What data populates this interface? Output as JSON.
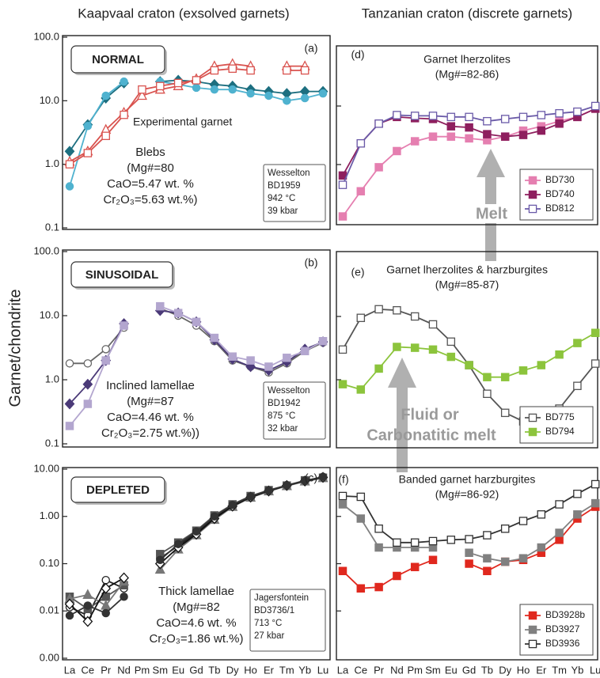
{
  "column_titles": [
    "Kaapvaal craton (exsolved garnets)",
    "Tanzanian craton (discrete garnets)"
  ],
  "y_label": "Garnet/chondrite",
  "arrows": {
    "melt": "Melt",
    "fluid": [
      "Fluid or",
      "Carbonatitic melt"
    ]
  },
  "chart_data": [
    {
      "type": "line",
      "log": true,
      "tick_labels": true,
      "panel_tag": "(a)",
      "label": "NORMAL",
      "curve_label": "Experimental garnet",
      "note": [
        "Blebs",
        "(Mg#=80",
        "CaO=5.47 wt. %",
        "Cr₂O₃=5.63 wt.%)"
      ],
      "sample": [
        "Wesselton",
        "BD1959",
        "942 °C",
        "39 kbar"
      ],
      "ylim": [
        0.1,
        100
      ],
      "yticks": [
        0.1,
        {
          "value": 1,
          "label": "1.0"
        },
        {
          "value": 10,
          "label": "10.0"
        },
        {
          "value": 100,
          "label": "100.0"
        }
      ],
      "series": [
        {
          "color": "#1d6f80",
          "marker": "diamond",
          "open": false,
          "values": [
            1.6,
            4.2,
            11,
            19,
            null,
            20,
            21,
            20,
            18,
            17,
            15,
            14,
            13,
            14,
            14
          ]
        },
        {
          "color": "#4fb2cf",
          "marker": "circle",
          "open": false,
          "values": [
            0.45,
            4,
            12,
            20,
            null,
            20,
            18,
            16,
            15,
            15,
            13,
            12,
            10,
            11,
            13
          ]
        },
        {
          "color": "#d9534f",
          "marker": "triangle",
          "open": true,
          "values": [
            1.1,
            1.6,
            3.5,
            6.5,
            12,
            15,
            17,
            22,
            35,
            38,
            35,
            null,
            35,
            35,
            null
          ]
        },
        {
          "color": "#d9534f",
          "marker": "square",
          "open": true,
          "values": [
            1.0,
            1.5,
            2.8,
            6,
            15,
            17,
            19,
            21,
            30,
            32,
            30,
            null,
            30,
            30,
            null
          ]
        }
      ]
    },
    {
      "type": "line",
      "log": true,
      "tick_labels": true,
      "panel_tag": "(b)",
      "label": "SINUSOIDAL",
      "note": [
        "Inclined lamellae",
        "(Mg#=87",
        "CaO=4.46 wt. %",
        "Cr₂O₃=2.75 wt.%))"
      ],
      "sample": [
        "Wesselton",
        "BD1942",
        "875 °C",
        "32 kbar"
      ],
      "ylim": [
        0.1,
        100
      ],
      "yticks": [
        0.1,
        {
          "value": 1,
          "label": "1.0"
        },
        {
          "value": 10,
          "label": "10.0"
        },
        {
          "value": 100,
          "label": "100.0"
        }
      ],
      "series": [
        {
          "color": "#666666",
          "marker": "circle",
          "open": true,
          "values": [
            1.8,
            1.8,
            3,
            6.5,
            null,
            13,
            10,
            7,
            4,
            2,
            1.6,
            1.3,
            1.8,
            2.8,
            3.8
          ]
        },
        {
          "color": "#4b3a78",
          "marker": "diamond",
          "open": false,
          "values": [
            0.42,
            0.85,
            2,
            7.5,
            null,
            12,
            11,
            8,
            4.2,
            2.1,
            1.6,
            1.4,
            1.9,
            3,
            3.9
          ]
        },
        {
          "color": "#b3a6cf",
          "marker": "square",
          "open": false,
          "values": [
            0.19,
            0.42,
            2,
            7,
            null,
            14,
            11,
            8,
            4.5,
            2.3,
            2,
            1.6,
            2.2,
            2.8,
            4
          ]
        }
      ]
    },
    {
      "type": "line",
      "log": true,
      "tick_labels": true,
      "panel_tag": "(c)",
      "label": "DEPLETED",
      "note": [
        "Thick lamellae",
        "(Mg#=82",
        "CaO=4.6 wt. %",
        "Cr₂O₃=1.86 wt.%)"
      ],
      "sample": [
        "Jagersfontein",
        "BD3736/1",
        "713 °C",
        "27 kbar"
      ],
      "categories": [
        "La",
        "Ce",
        "Pr",
        "Nd",
        "Pm",
        "Sm",
        "Eu",
        "Gd",
        "Tb",
        "Dy",
        "Ho",
        "Er",
        "Tm",
        "Yb",
        "Lu"
      ],
      "ylim": [
        0.001,
        10
      ],
      "yticks": [
        {
          "value": 0.001,
          "label": "0.00"
        },
        0.01,
        {
          "value": 0.1,
          "label": "0.10"
        },
        {
          "value": 1,
          "label": "1.00"
        },
        {
          "value": 10,
          "label": "10.00"
        }
      ],
      "series": [
        {
          "color": "#222222",
          "marker": "circle",
          "open": true,
          "values": [
            0.012,
            0.008,
            0.045,
            0.03,
            null,
            0.13,
            0.24,
            0.45,
            0.95,
            1.7,
            2.6,
            3.5,
            4.6,
            5.6,
            6.8
          ]
        },
        {
          "color": "#555555",
          "marker": "square",
          "open": false,
          "values": [
            0.02,
            0.011,
            0.02,
            0.035,
            null,
            0.16,
            0.28,
            0.5,
            1.05,
            1.8,
            2.7,
            3.6,
            4.5,
            5.8,
            6.6
          ]
        },
        {
          "color": "#777777",
          "marker": "triangle",
          "open": false,
          "values": [
            0.018,
            0.022,
            0.013,
            0.042,
            null,
            0.075,
            0.2,
            0.4,
            0.85,
            1.6,
            2.5,
            3.4,
            4.4,
            5.5,
            6.5
          ]
        },
        {
          "color": "#111111",
          "marker": "diamond",
          "open": true,
          "values": [
            0.014,
            0.006,
            0.03,
            0.05,
            null,
            0.1,
            0.22,
            0.42,
            0.9,
            1.65,
            2.55,
            3.45,
            4.5,
            5.6,
            6.7
          ]
        },
        {
          "color": "#333333",
          "marker": "circle",
          "open": false,
          "values": [
            0.008,
            0.013,
            0.009,
            0.02,
            null,
            0.12,
            0.26,
            0.48,
            1.0,
            1.75,
            2.65,
            3.55,
            4.55,
            5.7,
            6.9
          ]
        }
      ]
    },
    {
      "type": "line",
      "log": true,
      "tick_labels": false,
      "panel_tag": "(d)",
      "title": [
        "Garnet lherzolites",
        "(Mg#=82-86)"
      ],
      "legend": "lower right",
      "ylim": [
        0.1,
        100
      ],
      "yticks": [
        1,
        10
      ],
      "series": [
        {
          "name": "BD730",
          "color": "#e57fb0",
          "marker": "square",
          "open": false,
          "values": [
            0.13,
            0.35,
            0.9,
            1.7,
            2.5,
            3,
            3,
            2.8,
            2.6,
            3,
            3.8,
            4.5,
            5.5,
            6.5,
            9
          ]
        },
        {
          "name": "BD740",
          "color": "#8e1f5e",
          "marker": "square",
          "open": false,
          "values": [
            0.65,
            2.3,
            5,
            6.5,
            6.2,
            6,
            4.5,
            4.3,
            3.3,
            3,
            3.2,
            3.8,
            5,
            6.5,
            9
          ]
        },
        {
          "name": "BD812",
          "color": "#6a5aa8",
          "marker": "square",
          "open": true,
          "values": [
            0.45,
            2.3,
            5,
            7,
            6.8,
            6.8,
            6.5,
            6.5,
            5.5,
            6,
            6.5,
            7,
            7.5,
            8,
            10
          ]
        }
      ]
    },
    {
      "type": "line",
      "log": true,
      "tick_labels": false,
      "panel_tag": "(e)",
      "title": [
        "Garnet lherzolites & harzburgites",
        "(Mg#=85-87)"
      ],
      "legend": "lower right",
      "ylim": [
        0.1,
        100
      ],
      "yticks": [
        1,
        10
      ],
      "series": [
        {
          "name": "BD775",
          "color": "#555555",
          "marker": "square",
          "open": true,
          "values": [
            3,
            9.5,
            13,
            12.5,
            10,
            7.5,
            4,
            1.7,
            0.6,
            0.3,
            0.22,
            0.18,
            0.35,
            0.8,
            1.8
          ]
        },
        {
          "name": "BD794",
          "color": "#8cc43c",
          "marker": "square",
          "open": false,
          "values": [
            0.85,
            0.7,
            1.5,
            3.3,
            3.2,
            3,
            2.3,
            1.7,
            1.1,
            1.1,
            1.4,
            1.7,
            2.5,
            3.8,
            5.5
          ]
        }
      ]
    },
    {
      "type": "line",
      "log": true,
      "tick_labels": false,
      "panel_tag": "(f)",
      "title": [
        "Banded garnet harzburgites",
        "(Mg#=86-92)"
      ],
      "legend": "lower right",
      "categories": [
        "La",
        "Ce",
        "Pr",
        "Nd",
        "Pm",
        "Sm",
        "Eu",
        "Gd",
        "Tb",
        "Dy",
        "Ho",
        "Er",
        "Tm",
        "Yb",
        "Lu"
      ],
      "ylim": [
        0.001,
        10
      ],
      "yticks": [
        0.01,
        0.1,
        1
      ],
      "series": [
        {
          "name": "BD3928b",
          "color": "#e0281e",
          "marker": "square",
          "open": false,
          "values": [
            0.07,
            0.03,
            0.032,
            0.055,
            0.085,
            0.12,
            null,
            0.1,
            0.07,
            0.11,
            0.12,
            0.17,
            0.32,
            0.9,
            1.6
          ]
        },
        {
          "name": "BD3927",
          "color": "#808080",
          "marker": "square",
          "open": false,
          "values": [
            1.8,
            0.9,
            0.22,
            0.22,
            0.22,
            0.22,
            null,
            0.17,
            0.13,
            0.11,
            0.13,
            0.22,
            0.45,
            1.1,
            1.9
          ]
        },
        {
          "name": "BD3936",
          "color": "#333333",
          "marker": "square",
          "open": true,
          "values": [
            2.7,
            2.6,
            0.55,
            0.28,
            0.28,
            0.3,
            0.32,
            0.33,
            0.4,
            0.55,
            0.8,
            1.1,
            1.8,
            3,
            4.8
          ]
        }
      ]
    }
  ]
}
